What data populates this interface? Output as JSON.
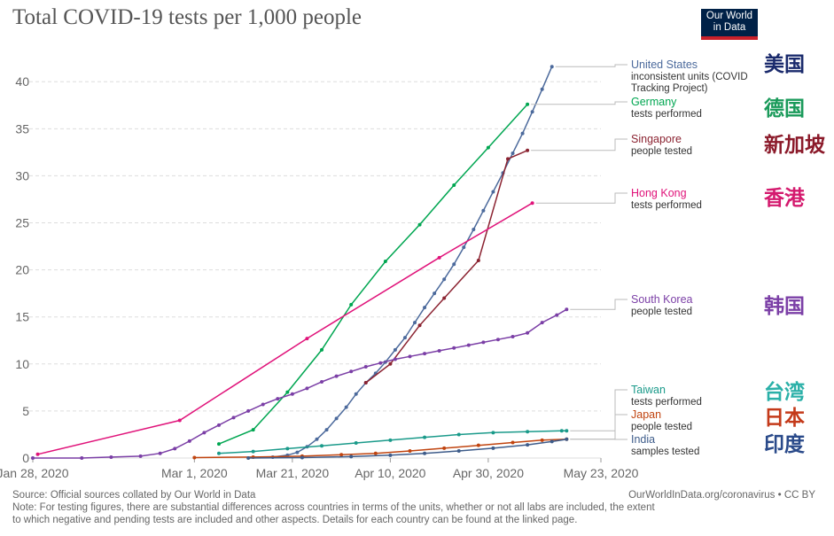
{
  "title": "Total COVID-19 tests per 1,000 people",
  "logo": {
    "line1": "Our World",
    "line2": "in Data"
  },
  "footer": {
    "source": "Source: Official sources collated by Our World in Data",
    "url": "OurWorldInData.org/coronavirus • CC BY",
    "note1": "Note: For testing figures, there are substantial differences across countries in terms of the units, whether or not all labs are included, the extent",
    "note2": "to which negative and pending tests are included and other aspects. Details for each country can be found at the linked page."
  },
  "chart_data": {
    "type": "line",
    "title": "Total COVID-19 tests per 1,000 people",
    "xlabel": "",
    "ylabel": "",
    "x_range": [
      0,
      116
    ],
    "ylim": [
      0,
      42
    ],
    "y_ticks": [
      0,
      5,
      10,
      15,
      20,
      25,
      30,
      35,
      40
    ],
    "x_ticks": [
      {
        "day": 0,
        "label": "Jan 28, 2020"
      },
      {
        "day": 33,
        "label": "Mar 1, 2020"
      },
      {
        "day": 53,
        "label": "Mar 21, 2020"
      },
      {
        "day": 73,
        "label": "Apr 10, 2020"
      },
      {
        "day": 93,
        "label": "Apr 30, 2020"
      },
      {
        "day": 116,
        "label": "May 23, 2020"
      }
    ],
    "grid": true,
    "series": [
      {
        "name": "United States",
        "sub": [
          "inconsistent units (COVID",
          "Tracking Project)"
        ],
        "cn": "美国",
        "color": "#4c6a9c",
        "cn_color": "#1a2a6c",
        "points": [
          [
            49,
            0.1
          ],
          [
            52,
            0.3
          ],
          [
            54,
            0.6
          ],
          [
            56,
            1.2
          ],
          [
            58,
            2.0
          ],
          [
            60,
            3.0
          ],
          [
            62,
            4.2
          ],
          [
            64,
            5.4
          ],
          [
            66,
            6.8
          ],
          [
            68,
            8.0
          ],
          [
            70,
            9.0
          ],
          [
            72,
            10.2
          ],
          [
            74,
            11.5
          ],
          [
            76,
            12.8
          ],
          [
            78,
            14.4
          ],
          [
            80,
            16.0
          ],
          [
            82,
            17.5
          ],
          [
            84,
            19.0
          ],
          [
            86,
            20.6
          ],
          [
            88,
            22.4
          ],
          [
            90,
            24.3
          ],
          [
            92,
            26.3
          ],
          [
            94,
            28.3
          ],
          [
            96,
            30.3
          ],
          [
            98,
            32.4
          ],
          [
            100,
            34.5
          ],
          [
            102,
            36.8
          ],
          [
            104,
            39.2
          ],
          [
            106,
            41.6
          ]
        ]
      },
      {
        "name": "Germany",
        "sub": [
          "tests performed"
        ],
        "cn": "德国",
        "color": "#00a651",
        "cn_color": "#1a9a5a",
        "points": [
          [
            38,
            1.5
          ],
          [
            45,
            3.0
          ],
          [
            52,
            7.0
          ],
          [
            59,
            11.5
          ],
          [
            65,
            16.3
          ],
          [
            72,
            20.9
          ],
          [
            79,
            24.8
          ],
          [
            86,
            29.0
          ],
          [
            93,
            33.0
          ],
          [
            101,
            37.6
          ]
        ]
      },
      {
        "name": "Singapore",
        "sub": [
          "people tested"
        ],
        "cn": "新加坡",
        "color": "#8b2331",
        "cn_color": "#8b1a2a",
        "points": [
          [
            68,
            8.0
          ],
          [
            73,
            10.0
          ],
          [
            79,
            14.1
          ],
          [
            84,
            17.0
          ],
          [
            91,
            21.0
          ],
          [
            97,
            31.8
          ],
          [
            101,
            32.7
          ]
        ]
      },
      {
        "name": "Hong Kong",
        "sub": [
          "tests performed"
        ],
        "cn": "香港",
        "color": "#e0137a",
        "cn_color": "#d41a6e",
        "points": [
          [
            1,
            0.4
          ],
          [
            30,
            4.0
          ],
          [
            56,
            12.7
          ],
          [
            83,
            21.3
          ],
          [
            102,
            27.1
          ]
        ]
      },
      {
        "name": "South Korea",
        "sub": [
          "people tested"
        ],
        "cn": "韩国",
        "color": "#7b3fa6",
        "cn_color": "#7b3fa6",
        "points": [
          [
            0,
            0
          ],
          [
            10,
            0
          ],
          [
            16,
            0.1
          ],
          [
            22,
            0.2
          ],
          [
            26,
            0.5
          ],
          [
            29,
            1.0
          ],
          [
            32,
            1.8
          ],
          [
            35,
            2.7
          ],
          [
            38,
            3.5
          ],
          [
            41,
            4.3
          ],
          [
            44,
            5.0
          ],
          [
            47,
            5.7
          ],
          [
            50,
            6.3
          ],
          [
            53,
            6.8
          ],
          [
            56,
            7.4
          ],
          [
            59,
            8.1
          ],
          [
            62,
            8.7
          ],
          [
            65,
            9.2
          ],
          [
            68,
            9.7
          ],
          [
            71,
            10.1
          ],
          [
            74,
            10.5
          ],
          [
            77,
            10.8
          ],
          [
            80,
            11.1
          ],
          [
            83,
            11.4
          ],
          [
            86,
            11.7
          ],
          [
            89,
            12.0
          ],
          [
            92,
            12.3
          ],
          [
            95,
            12.6
          ],
          [
            98,
            12.9
          ],
          [
            101,
            13.3
          ],
          [
            104,
            14.4
          ],
          [
            107,
            15.2
          ],
          [
            109,
            15.8
          ]
        ]
      },
      {
        "name": "Taiwan",
        "sub": [
          "tests performed"
        ],
        "cn": "台湾",
        "color": "#1a9a8a",
        "cn_color": "#2ab0a8",
        "points": [
          [
            38,
            0.5
          ],
          [
            45,
            0.7
          ],
          [
            52,
            1.0
          ],
          [
            59,
            1.3
          ],
          [
            66,
            1.6
          ],
          [
            73,
            1.9
          ],
          [
            80,
            2.2
          ],
          [
            87,
            2.5
          ],
          [
            94,
            2.7
          ],
          [
            101,
            2.8
          ],
          [
            108,
            2.9
          ],
          [
            109,
            2.9
          ]
        ]
      },
      {
        "name": "Japan",
        "sub": [
          "people tested"
        ],
        "cn": "日本",
        "color": "#c0440f",
        "cn_color": "#c43a1a",
        "points": [
          [
            33,
            0.05
          ],
          [
            45,
            0.1
          ],
          [
            55,
            0.2
          ],
          [
            63,
            0.35
          ],
          [
            70,
            0.5
          ],
          [
            77,
            0.75
          ],
          [
            84,
            1.05
          ],
          [
            91,
            1.35
          ],
          [
            98,
            1.65
          ],
          [
            104,
            1.9
          ],
          [
            109,
            2.0
          ]
        ]
      },
      {
        "name": "India",
        "sub": [
          "samples tested"
        ],
        "cn": "印度",
        "color": "#3e5c8a",
        "cn_color": "#2a4a8a",
        "points": [
          [
            44,
            0
          ],
          [
            55,
            0.05
          ],
          [
            65,
            0.15
          ],
          [
            73,
            0.3
          ],
          [
            80,
            0.5
          ],
          [
            87,
            0.75
          ],
          [
            94,
            1.05
          ],
          [
            101,
            1.4
          ],
          [
            106,
            1.75
          ],
          [
            109,
            2.0
          ]
        ]
      }
    ]
  }
}
